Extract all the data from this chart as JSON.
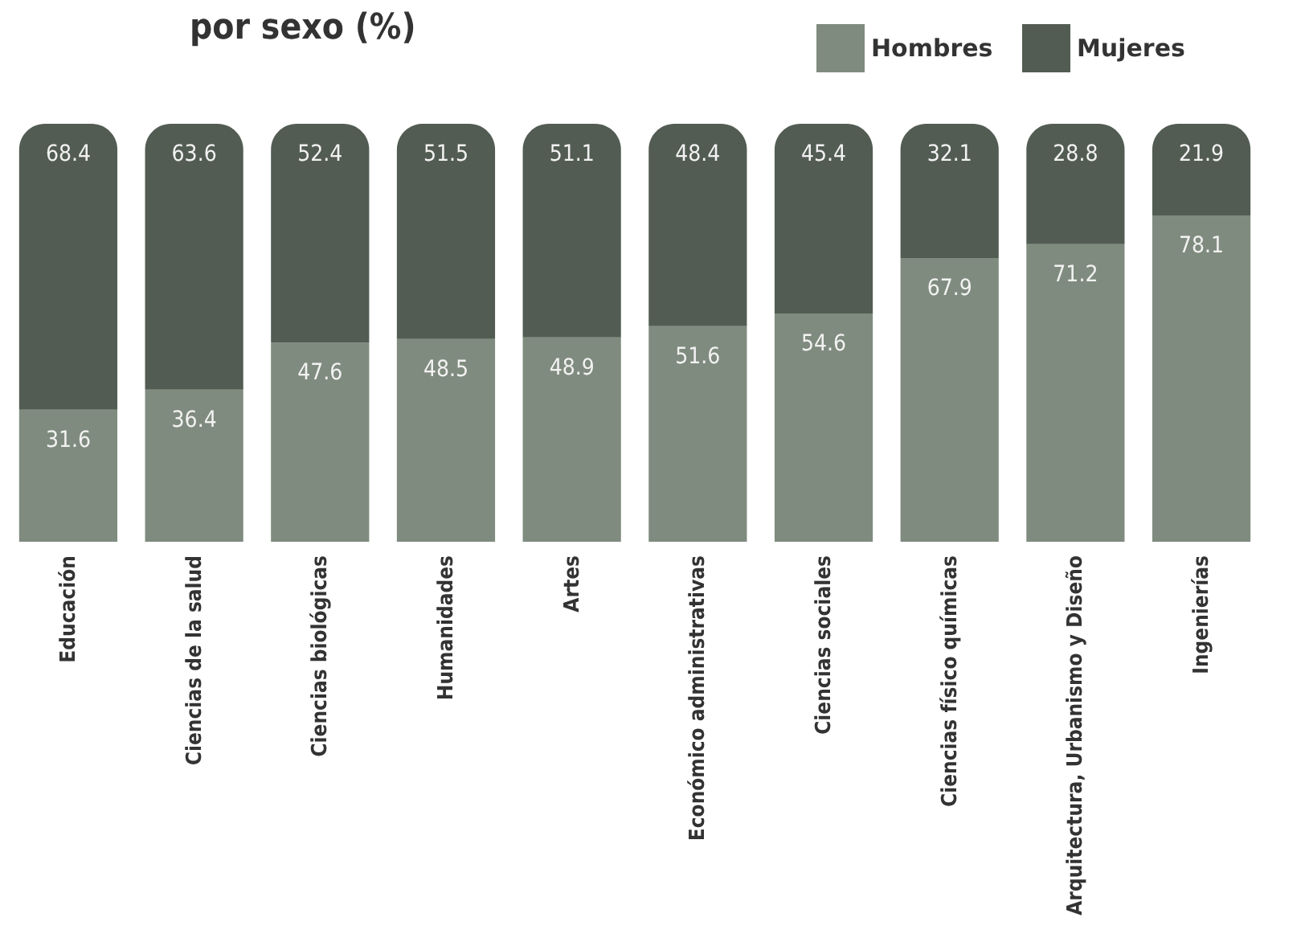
{
  "chart_data": {
    "type": "bar",
    "title": "por sexo (%)",
    "categories": [
      "Educación",
      "Ciencias de la salud",
      "Ciencias biológicas",
      "Humanidades",
      "Artes",
      "Económico administrativas",
      "Ciencias sociales",
      "Ciencias físico químicas",
      "Arquitectura, Urbanismo y Diseño",
      "Ingenierías"
    ],
    "series": [
      {
        "name": "Hombres",
        "color": "#7f8b7e",
        "values": [
          31.6,
          36.4,
          47.6,
          48.5,
          48.9,
          51.6,
          54.6,
          67.9,
          71.2,
          78.1
        ]
      },
      {
        "name": "Mujeres",
        "color": "#525c53",
        "values": [
          68.4,
          63.6,
          52.4,
          51.5,
          51.1,
          48.4,
          45.4,
          32.1,
          28.8,
          21.9
        ]
      }
    ],
    "stacked": true,
    "ylim": [
      0,
      100
    ],
    "tick_labels": "x",
    "data_labels": true,
    "legend": "top right"
  }
}
